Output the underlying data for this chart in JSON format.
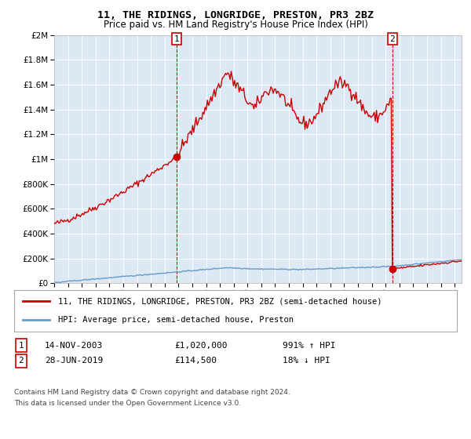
{
  "title": "11, THE RIDINGS, LONGRIDGE, PRESTON, PR3 2BZ",
  "subtitle": "Price paid vs. HM Land Registry's House Price Index (HPI)",
  "legend_line1": "11, THE RIDINGS, LONGRIDGE, PRESTON, PR3 2BZ (semi-detached house)",
  "legend_line2": "HPI: Average price, semi-detached house, Preston",
  "annotation1_date": "14-NOV-2003",
  "annotation1_price": "£1,020,000",
  "annotation1_hpi": "991% ↑ HPI",
  "annotation2_date": "28-JUN-2019",
  "annotation2_price": "£114,500",
  "annotation2_hpi": "18% ↓ HPI",
  "footnote1": "Contains HM Land Registry data © Crown copyright and database right 2024.",
  "footnote2": "This data is licensed under the Open Government Licence v3.0.",
  "bg_color": "#dce9f5",
  "red_color": "#cc0000",
  "blue_color": "#6699cc",
  "marker1_x": 2003.87,
  "marker1_y": 1020000,
  "marker2_x": 2019.49,
  "marker2_y": 114500,
  "ylim": [
    0,
    2000000
  ],
  "xlim_start": 1995.0,
  "xlim_end": 2024.5,
  "yticks": [
    0,
    200000,
    400000,
    600000,
    800000,
    1000000,
    1200000,
    1400000,
    1600000,
    1800000,
    2000000
  ]
}
